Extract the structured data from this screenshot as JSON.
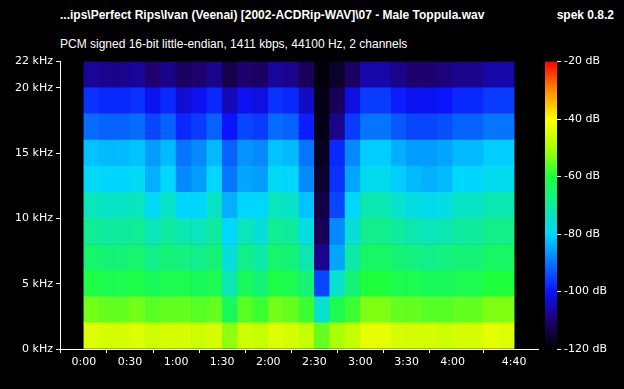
{
  "chart_data": {
    "type": "heatmap",
    "title": "...ips\\Perfect Rips\\Ivan (Veenai) [2002-ACDRip-WAV]\\07 - Male Toppula.wav",
    "subtitle": "PCM signed 16-bit little-endian, 1411 kbps, 44100 Hz, 2 channels",
    "annotations": [
      "spek 0.8.2"
    ],
    "xlim": [
      0,
      280
    ],
    "xticks": [
      {
        "value": 0,
        "label": "0:00"
      },
      {
        "value": 30,
        "label": "0:30"
      },
      {
        "value": 60,
        "label": "1:00"
      },
      {
        "value": 90,
        "label": "1:30"
      },
      {
        "value": 120,
        "label": "2:00"
      },
      {
        "value": 150,
        "label": "2:30"
      },
      {
        "value": 180,
        "label": "3:00"
      },
      {
        "value": 210,
        "label": "3:30"
      },
      {
        "value": 240,
        "label": "4:00"
      },
      {
        "value": 280,
        "label": "4:40"
      }
    ],
    "ylim": [
      0,
      22
    ],
    "yticks": [
      {
        "value": 0,
        "label": "0 kHz"
      },
      {
        "value": 5,
        "label": "5 kHz"
      },
      {
        "value": 10,
        "label": "10 kHz"
      },
      {
        "value": 15,
        "label": "15 kHz"
      },
      {
        "value": 20,
        "label": "20 kHz"
      },
      {
        "value": 22,
        "label": "22 kHz"
      }
    ],
    "grid": false,
    "cells": {
      "x": [
        5,
        15,
        25,
        35,
        45,
        55,
        65,
        75,
        85,
        95,
        105,
        115,
        125,
        135,
        145,
        155,
        165,
        175,
        185,
        195,
        205,
        215,
        225,
        235,
        245,
        255,
        265,
        275
      ],
      "y_bins": [
        0,
        2,
        4,
        6,
        8,
        10,
        12,
        14,
        16,
        18,
        20,
        22
      ],
      "values": [
        [
          -44,
          -45,
          -45,
          -44,
          -46,
          -45,
          -45,
          -46,
          -45,
          -52,
          -46,
          -47,
          -44,
          -45,
          -47,
          -55,
          -50,
          -47,
          -43,
          -43,
          -45,
          -45,
          -45,
          -46,
          -45,
          -45,
          -43,
          -44
        ],
        [
          -54,
          -55,
          -55,
          -54,
          -56,
          -55,
          -55,
          -56,
          -55,
          -63,
          -56,
          -58,
          -54,
          -55,
          -58,
          -75,
          -62,
          -58,
          -53,
          -53,
          -55,
          -55,
          -56,
          -56,
          -55,
          -55,
          -53,
          -53
        ],
        [
          -61,
          -62,
          -62,
          -61,
          -63,
          -62,
          -62,
          -63,
          -62,
          -72,
          -63,
          -66,
          -61,
          -62,
          -66,
          -95,
          -75,
          -66,
          -60,
          -60,
          -62,
          -62,
          -63,
          -63,
          -62,
          -62,
          -60,
          -60
        ],
        [
          -65,
          -66,
          -66,
          -65,
          -68,
          -66,
          -67,
          -68,
          -66,
          -76,
          -68,
          -71,
          -65,
          -66,
          -72,
          -108,
          -85,
          -71,
          -64,
          -64,
          -66,
          -67,
          -68,
          -67,
          -66,
          -66,
          -64,
          -64
        ],
        [
          -69,
          -70,
          -70,
          -69,
          -73,
          -70,
          -72,
          -73,
          -70,
          -80,
          -73,
          -76,
          -69,
          -70,
          -77,
          -112,
          -88,
          -76,
          -68,
          -68,
          -70,
          -72,
          -73,
          -72,
          -70,
          -70,
          -68,
          -68
        ],
        [
          -73,
          -74,
          -74,
          -73,
          -79,
          -74,
          -80,
          -80,
          -74,
          -84,
          -80,
          -80,
          -73,
          -74,
          -82,
          -114,
          -95,
          -80,
          -72,
          -72,
          -75,
          -77,
          -78,
          -77,
          -74,
          -74,
          -72,
          -72
        ],
        [
          -79,
          -80,
          -80,
          -79,
          -84,
          -80,
          -88,
          -86,
          -80,
          -90,
          -85,
          -86,
          -79,
          -80,
          -88,
          -116,
          -97,
          -85,
          -78,
          -78,
          -81,
          -83,
          -84,
          -83,
          -80,
          -80,
          -78,
          -78
        ],
        [
          -82,
          -83,
          -83,
          -82,
          -86,
          -83,
          -90,
          -88,
          -83,
          -92,
          -87,
          -88,
          -82,
          -83,
          -90,
          -117,
          -98,
          -88,
          -81,
          -81,
          -84,
          -86,
          -86,
          -85,
          -83,
          -83,
          -81,
          -81
        ],
        [
          -91,
          -92,
          -92,
          -91,
          -95,
          -92,
          -98,
          -96,
          -92,
          -100,
          -95,
          -96,
          -91,
          -92,
          -99,
          -118,
          -108,
          -96,
          -90,
          -90,
          -93,
          -95,
          -95,
          -94,
          -92,
          -92,
          -90,
          -90
        ],
        [
          -97,
          -98,
          -98,
          -97,
          -101,
          -98,
          -103,
          -101,
          -98,
          -105,
          -101,
          -102,
          -97,
          -98,
          -104,
          -118,
          -112,
          -102,
          -96,
          -96,
          -99,
          -101,
          -101,
          -100,
          -98,
          -98,
          -96,
          -96
        ],
        [
          -107,
          -108,
          -108,
          -107,
          -110,
          -108,
          -111,
          -110,
          -108,
          -113,
          -110,
          -111,
          -107,
          -108,
          -112,
          -119,
          -116,
          -111,
          -106,
          -106,
          -108,
          -110,
          -110,
          -109,
          -108,
          -108,
          -106,
          -106
        ]
      ]
    },
    "colorbar": {
      "range": [
        -120,
        -20
      ],
      "ticks": [
        {
          "value": -20,
          "label": "-20 dB"
        },
        {
          "value": -40,
          "label": "-40 dB"
        },
        {
          "value": -60,
          "label": "-60 dB"
        },
        {
          "value": -80,
          "label": "-80 dB"
        },
        {
          "value": -100,
          "label": "-100 dB"
        },
        {
          "value": -120,
          "label": "-120 dB"
        }
      ]
    }
  }
}
